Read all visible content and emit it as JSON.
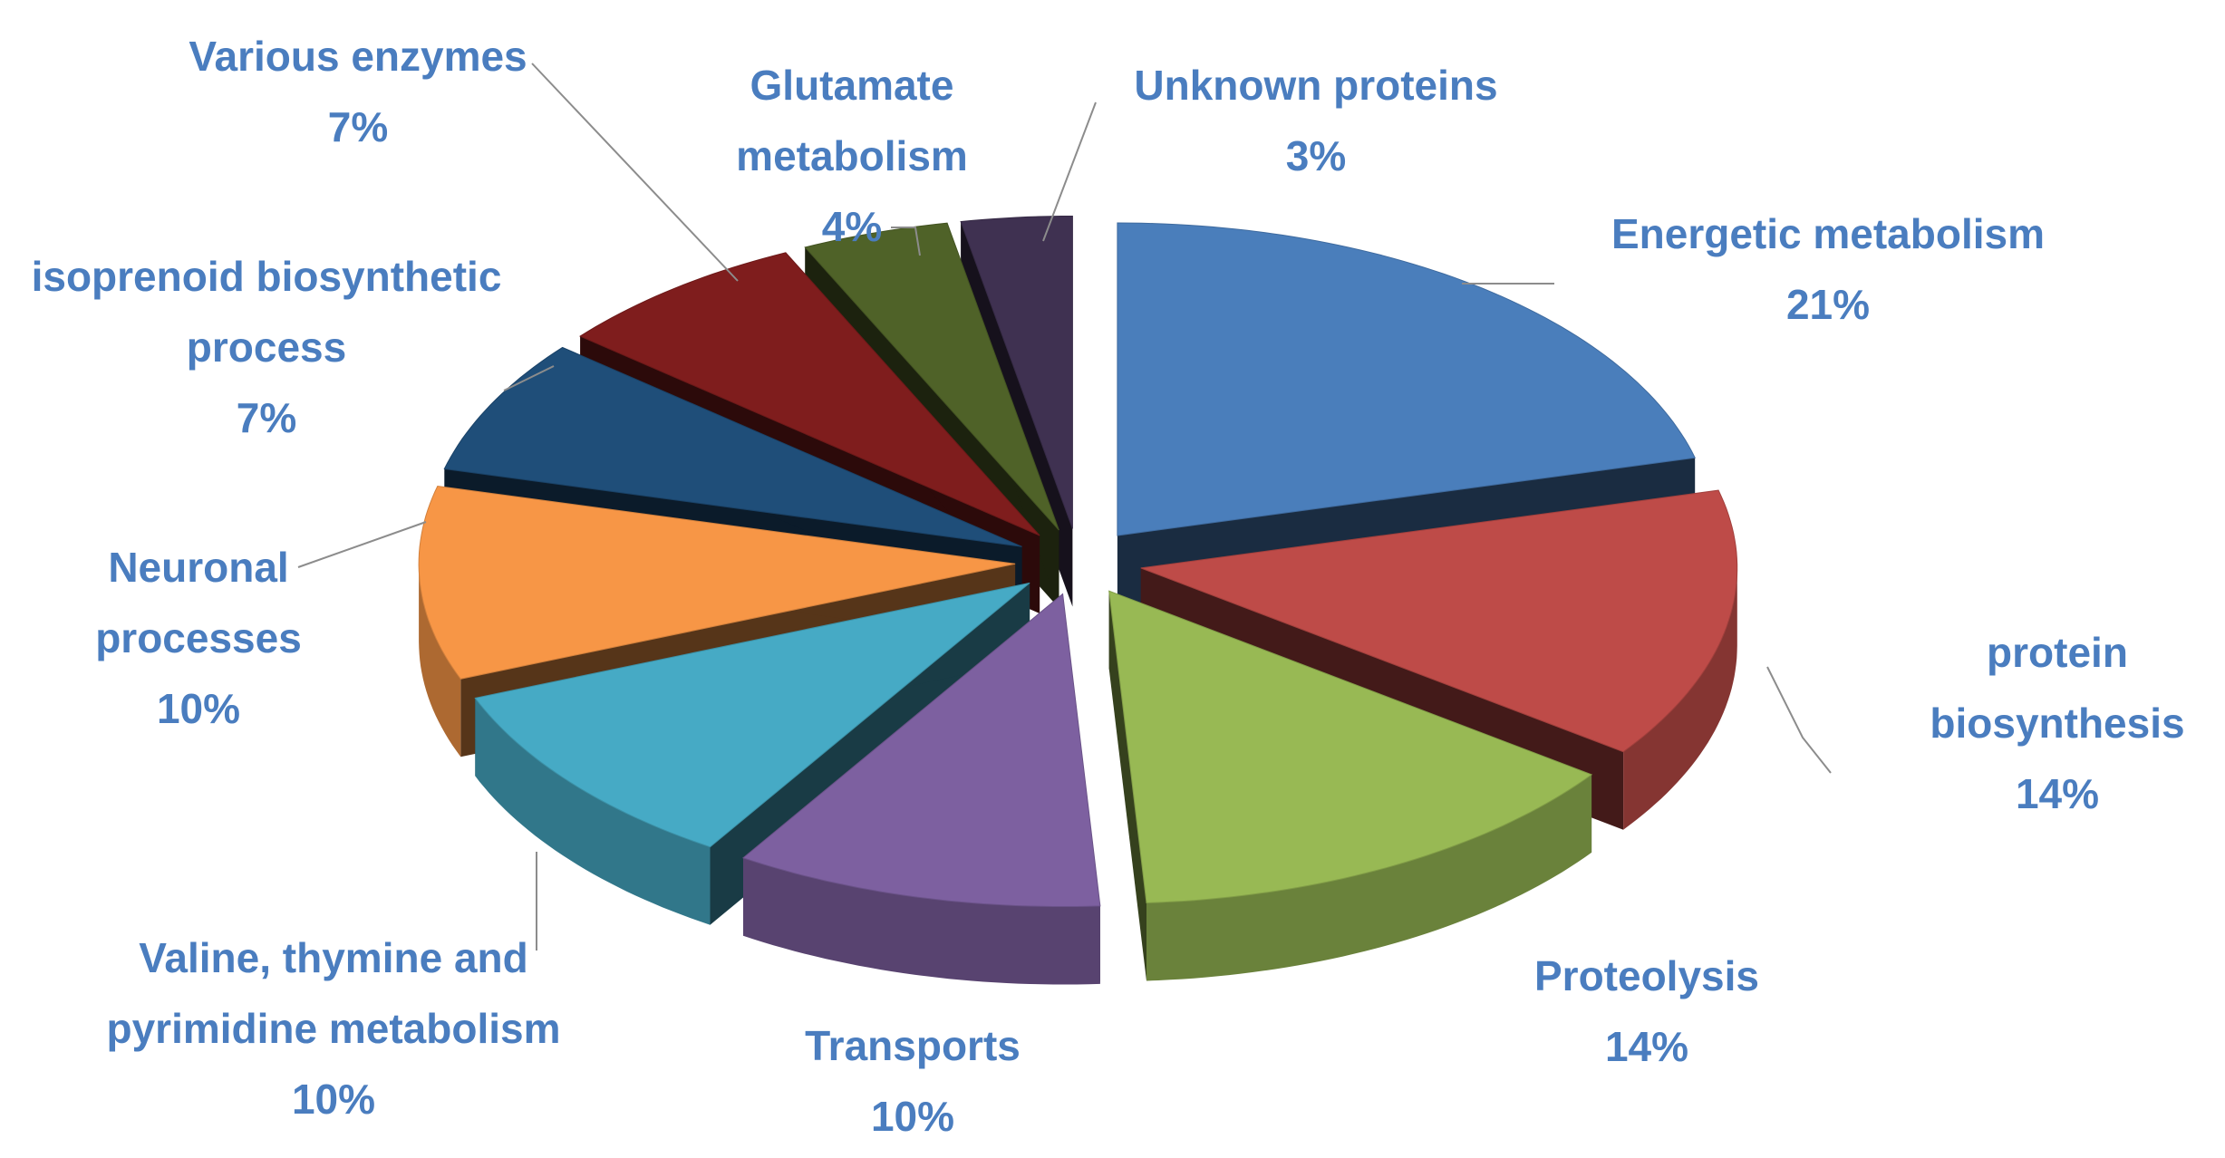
{
  "chart_data": {
    "type": "pie",
    "categories": [
      "Energetic metabolism",
      "protein biosynthesis",
      "Proteolysis",
      "Transports",
      "Valine, thymine and pyrimidine metabolism",
      "Neuronal processes",
      "isoprenoid biosynthetic process",
      "Various enzymes",
      "Glutamate metabolism",
      "Unknown proteins"
    ],
    "values": [
      21,
      14,
      14,
      10,
      10,
      10,
      7,
      7,
      4,
      3
    ],
    "value_labels": [
      "21%",
      "14%",
      "14%",
      "10%",
      "10%",
      "10%",
      "7%",
      "7%",
      "4%",
      "3%"
    ],
    "colors": [
      "#4a7ebb",
      "#be4b48",
      "#98b954",
      "#7d60a0",
      "#46aac5",
      "#f79646",
      "#1f4e79",
      "#7f1d1d",
      "#4f6228",
      "#3f3151"
    ]
  }
}
